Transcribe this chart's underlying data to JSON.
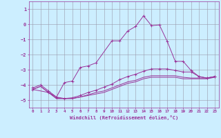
{
  "bg_color": "#cceeff",
  "line_color": "#993399",
  "xlim": [
    -0.5,
    23.5
  ],
  "ylim": [
    -5.5,
    1.5
  ],
  "yticks": [
    1,
    0,
    -1,
    -2,
    -3,
    -4,
    -5
  ],
  "xticks": [
    0,
    1,
    2,
    3,
    4,
    5,
    6,
    7,
    8,
    9,
    10,
    11,
    12,
    13,
    14,
    15,
    16,
    17,
    18,
    19,
    20,
    21,
    22,
    23
  ],
  "xlabel": "Windchill (Refroidissement éolien,°C)",
  "series": [
    {
      "x": [
        0,
        1,
        2,
        3,
        4,
        5,
        6,
        7,
        8,
        9,
        10,
        11,
        12,
        13,
        14,
        15,
        16,
        17,
        18,
        19,
        20,
        21,
        22,
        23
      ],
      "y": [
        -4.3,
        -4.1,
        -4.5,
        -4.9,
        -4.9,
        -4.9,
        -4.8,
        -4.7,
        -4.6,
        -4.5,
        -4.3,
        -4.1,
        -3.9,
        -3.8,
        -3.6,
        -3.5,
        -3.5,
        -3.5,
        -3.5,
        -3.6,
        -3.6,
        -3.6,
        -3.6,
        -3.5
      ],
      "marker": false
    },
    {
      "x": [
        0,
        1,
        2,
        3,
        4,
        5,
        6,
        7,
        8,
        9,
        10,
        11,
        12,
        13,
        14,
        15,
        16,
        17,
        18,
        19,
        20,
        21,
        22,
        23
      ],
      "y": [
        -4.3,
        -4.1,
        -4.5,
        -4.9,
        -4.9,
        -4.9,
        -4.8,
        -4.65,
        -4.5,
        -4.4,
        -4.2,
        -4.0,
        -3.8,
        -3.7,
        -3.5,
        -3.4,
        -3.4,
        -3.4,
        -3.4,
        -3.5,
        -3.55,
        -3.55,
        -3.55,
        -3.45
      ],
      "marker": false
    },
    {
      "x": [
        0,
        1,
        2,
        3,
        4,
        5,
        6,
        7,
        8,
        9,
        10,
        11,
        12,
        13,
        14,
        15,
        16,
        17,
        18,
        19,
        20,
        21,
        22,
        23
      ],
      "y": [
        -4.2,
        -4.0,
        -4.4,
        -4.8,
        -4.9,
        -4.85,
        -4.7,
        -4.5,
        -4.35,
        -4.15,
        -3.95,
        -3.65,
        -3.45,
        -3.3,
        -3.1,
        -2.95,
        -2.95,
        -2.95,
        -3.05,
        -3.15,
        -3.15,
        -3.45,
        -3.55,
        -3.45
      ],
      "marker": true
    },
    {
      "x": [
        0,
        2,
        3,
        4,
        5,
        6,
        7,
        8,
        10,
        11,
        12,
        13,
        14,
        15,
        16,
        17,
        18,
        19,
        20,
        21,
        22,
        23
      ],
      "y": [
        -4.3,
        -4.5,
        -4.8,
        -3.85,
        -3.75,
        -2.85,
        -2.75,
        -2.55,
        -1.1,
        -1.1,
        -0.45,
        -0.15,
        0.55,
        -0.1,
        -0.05,
        -1.15,
        -2.45,
        -2.45,
        -3.05,
        -3.45,
        -3.55,
        -3.45
      ],
      "marker": true
    }
  ]
}
